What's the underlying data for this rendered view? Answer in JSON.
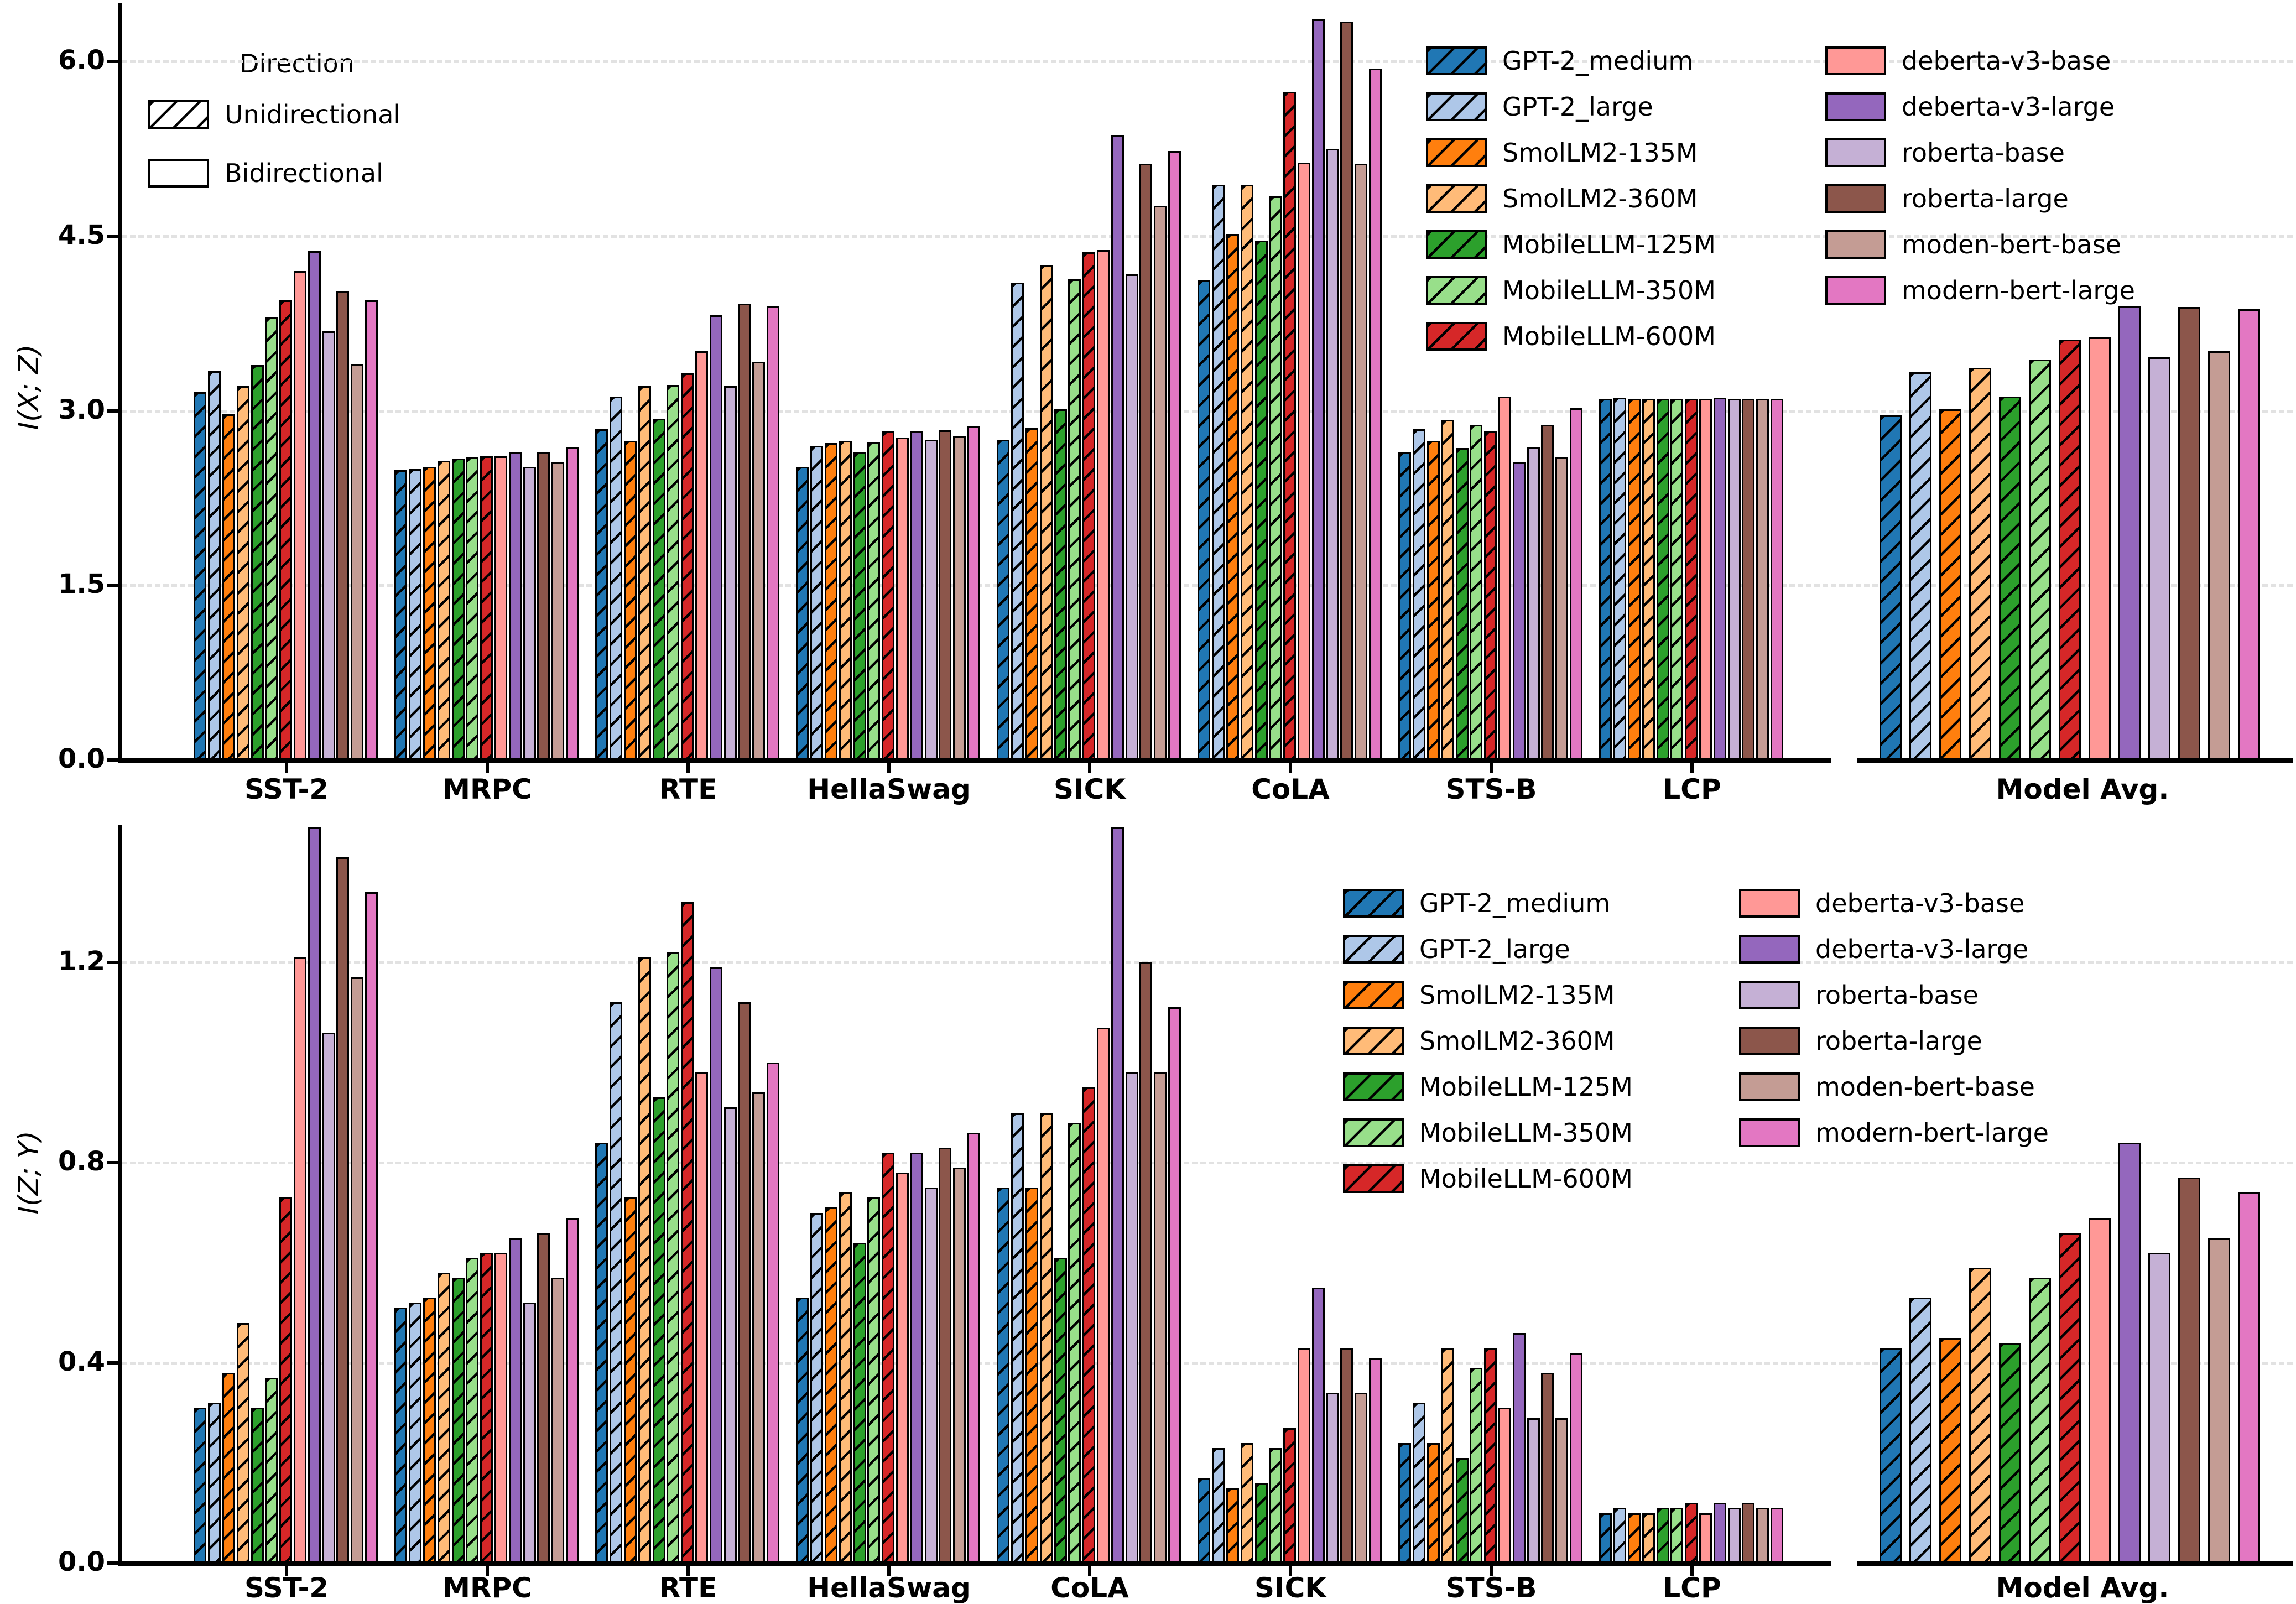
{
  "direction_legend": {
    "title": "Direction",
    "items": [
      {
        "label": "Unidirectional",
        "hatched": true
      },
      {
        "label": "Bidirectional",
        "hatched": false
      }
    ]
  },
  "series": [
    {
      "name": "GPT-2_medium",
      "color": "#2077b4",
      "hatched": true
    },
    {
      "name": "GPT-2_large",
      "color": "#aec7e8",
      "hatched": true
    },
    {
      "name": "SmolLM2-135M",
      "color": "#ff7f0e",
      "hatched": true
    },
    {
      "name": "SmolLM2-360M",
      "color": "#ffbb78",
      "hatched": true
    },
    {
      "name": "MobileLLM-125M",
      "color": "#2ca02c",
      "hatched": true
    },
    {
      "name": "MobileLLM-350M",
      "color": "#98df8a",
      "hatched": true
    },
    {
      "name": "MobileLLM-600M",
      "color": "#d62728",
      "hatched": true
    },
    {
      "name": "deberta-v3-base",
      "color": "#ff9896",
      "hatched": false
    },
    {
      "name": "deberta-v3-large",
      "color": "#9467bd",
      "hatched": false
    },
    {
      "name": "roberta-base",
      "color": "#c5b0d5",
      "hatched": false
    },
    {
      "name": "roberta-large",
      "color": "#8c564b",
      "hatched": false
    },
    {
      "name": "moden-bert-base",
      "color": "#c49c94",
      "hatched": false
    },
    {
      "name": "modern-bert-large",
      "color": "#e377c2",
      "hatched": false
    }
  ],
  "chart_data": [
    {
      "id": "top",
      "type": "bar",
      "ylabel": "I(X; Z)",
      "ylim": [
        0,
        6.5
      ],
      "yticks": [
        {
          "v": 0,
          "label": "0.0"
        },
        {
          "v": 1.5,
          "label": "1.5"
        },
        {
          "v": 3.0,
          "label": "3.0"
        },
        {
          "v": 4.5,
          "label": "4.5"
        },
        {
          "v": 6.0,
          "label": "6.0"
        }
      ],
      "grid": "dashed-horizontal",
      "legend_position": "upper-right",
      "categories": [
        "SST-2",
        "MRPC",
        "RTE",
        "HellaSwag",
        "SICK",
        "CoLA",
        "STS-B",
        "LCP"
      ],
      "avg_category": "Model Avg.",
      "values": {
        "SST-2": [
          3.16,
          3.34,
          2.97,
          3.21,
          3.39,
          3.8,
          3.95,
          4.2,
          4.37,
          3.68,
          4.03,
          3.4,
          3.95
        ],
        "MRPC": [
          2.49,
          2.5,
          2.52,
          2.57,
          2.59,
          2.6,
          2.61,
          2.61,
          2.64,
          2.52,
          2.64,
          2.56,
          2.69
        ],
        "RTE": [
          2.84,
          3.12,
          2.74,
          3.21,
          2.93,
          3.22,
          3.32,
          3.51,
          3.82,
          3.21,
          3.92,
          3.42,
          3.9
        ],
        "HellaSwag": [
          2.52,
          2.7,
          2.72,
          2.74,
          2.64,
          2.73,
          2.82,
          2.77,
          2.82,
          2.75,
          2.83,
          2.78,
          2.87
        ],
        "SICK": [
          2.75,
          4.1,
          2.85,
          4.25,
          3.01,
          4.13,
          4.36,
          4.38,
          5.37,
          4.17,
          5.12,
          4.76,
          5.23
        ],
        "CoLA": [
          4.12,
          4.94,
          4.52,
          4.94,
          4.46,
          4.84,
          5.74,
          5.13,
          6.36,
          5.25,
          6.34,
          5.12,
          5.94
        ],
        "STS-B": [
          2.64,
          2.84,
          2.74,
          2.92,
          2.68,
          2.88,
          2.82,
          3.12,
          2.56,
          2.69,
          2.88,
          2.6,
          3.02
        ],
        "LCP": [
          3.1,
          3.11,
          3.1,
          3.1,
          3.1,
          3.1,
          3.1,
          3.1,
          3.11,
          3.1,
          3.1,
          3.1,
          3.1
        ]
      },
      "model_avg": [
        2.96,
        3.33,
        3.01,
        3.37,
        3.12,
        3.44,
        3.61,
        3.63,
        3.9,
        3.46,
        3.89,
        3.51,
        3.87
      ]
    },
    {
      "id": "bottom",
      "type": "bar",
      "ylabel": "I(Z; Y)",
      "ylim": [
        0,
        1.48
      ],
      "yticks": [
        {
          "v": 0,
          "label": "0.0"
        },
        {
          "v": 0.4,
          "label": "0.4"
        },
        {
          "v": 0.8,
          "label": "0.8"
        },
        {
          "v": 1.2,
          "label": "1.2"
        }
      ],
      "grid": "dashed-horizontal",
      "legend_position": "upper-right",
      "categories": [
        "SST-2",
        "MRPC",
        "RTE",
        "HellaSwag",
        "CoLA",
        "SICK",
        "STS-B",
        "LCP"
      ],
      "avg_category": "Model Avg.",
      "values": {
        "SST-2": [
          0.31,
          0.32,
          0.38,
          0.48,
          0.31,
          0.37,
          0.73,
          1.21,
          1.47,
          1.06,
          1.41,
          1.17,
          1.34
        ],
        "MRPC": [
          0.51,
          0.52,
          0.53,
          0.58,
          0.57,
          0.61,
          0.62,
          0.62,
          0.65,
          0.52,
          0.66,
          0.57,
          0.69
        ],
        "RTE": [
          0.84,
          1.12,
          0.73,
          1.21,
          0.93,
          1.22,
          1.32,
          0.98,
          1.19,
          0.91,
          1.12,
          0.94,
          1.0
        ],
        "HellaSwag": [
          0.53,
          0.7,
          0.71,
          0.74,
          0.64,
          0.73,
          0.82,
          0.78,
          0.82,
          0.75,
          0.83,
          0.79,
          0.86
        ],
        "CoLA": [
          0.75,
          0.9,
          0.75,
          0.9,
          0.61,
          0.88,
          0.95,
          1.07,
          1.47,
          0.98,
          1.2,
          0.98,
          1.11
        ],
        "SICK": [
          0.17,
          0.23,
          0.15,
          0.24,
          0.16,
          0.23,
          0.27,
          0.43,
          0.55,
          0.34,
          0.43,
          0.34,
          0.41
        ],
        "STS-B": [
          0.24,
          0.32,
          0.24,
          0.43,
          0.21,
          0.39,
          0.43,
          0.31,
          0.46,
          0.29,
          0.38,
          0.29,
          0.42
        ],
        "LCP": [
          0.1,
          0.11,
          0.1,
          0.1,
          0.11,
          0.11,
          0.12,
          0.1,
          0.12,
          0.11,
          0.12,
          0.11,
          0.11
        ]
      },
      "model_avg": [
        0.43,
        0.53,
        0.45,
        0.59,
        0.44,
        0.57,
        0.66,
        0.69,
        0.84,
        0.62,
        0.77,
        0.65,
        0.74
      ]
    }
  ]
}
